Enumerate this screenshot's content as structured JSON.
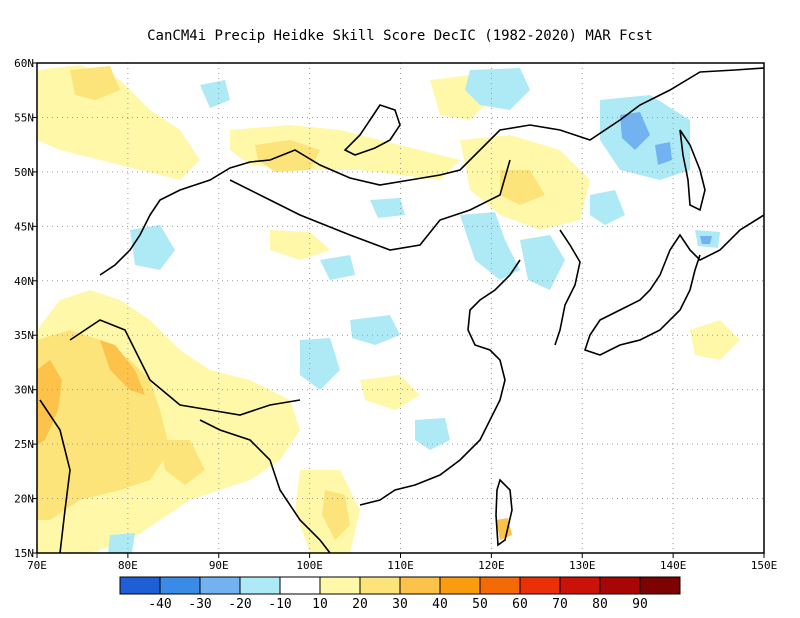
{
  "title": "CanCM4i Precip Heidke Skill Score DecIC (1982-2020) MAR Fcst",
  "map": {
    "lon_range": [
      70,
      150
    ],
    "lat_range": [
      15,
      60
    ],
    "lon_ticks": [
      "70E",
      "80E",
      "90E",
      "100E",
      "110E",
      "120E",
      "130E",
      "140E",
      "150E"
    ],
    "lat_ticks": [
      "15N",
      "20N",
      "25N",
      "30N",
      "35N",
      "40N",
      "45N",
      "50N",
      "55N",
      "60N"
    ],
    "gridlines": "dotted"
  },
  "colorbar": {
    "colors": [
      "#1f5fd6",
      "#3a8ae8",
      "#72b2f0",
      "#aeeaf5",
      "#ffffff",
      "#fff8a8",
      "#fde47a",
      "#fcc24a",
      "#f99d0e",
      "#f46a06",
      "#eb3008",
      "#cc1108",
      "#a80605",
      "#7d0202"
    ],
    "labels": [
      "-40",
      "-30",
      "-20",
      "-10",
      "10",
      "20",
      "30",
      "40",
      "50",
      "60",
      "70",
      "80",
      "90"
    ]
  },
  "field_colors": {
    "neg10": "#aeeaf5",
    "neg20": "#72b2f0",
    "pos10": "#fff8a8",
    "pos20": "#fde47a",
    "pos30": "#fcc24a",
    "coast": "#000000"
  }
}
